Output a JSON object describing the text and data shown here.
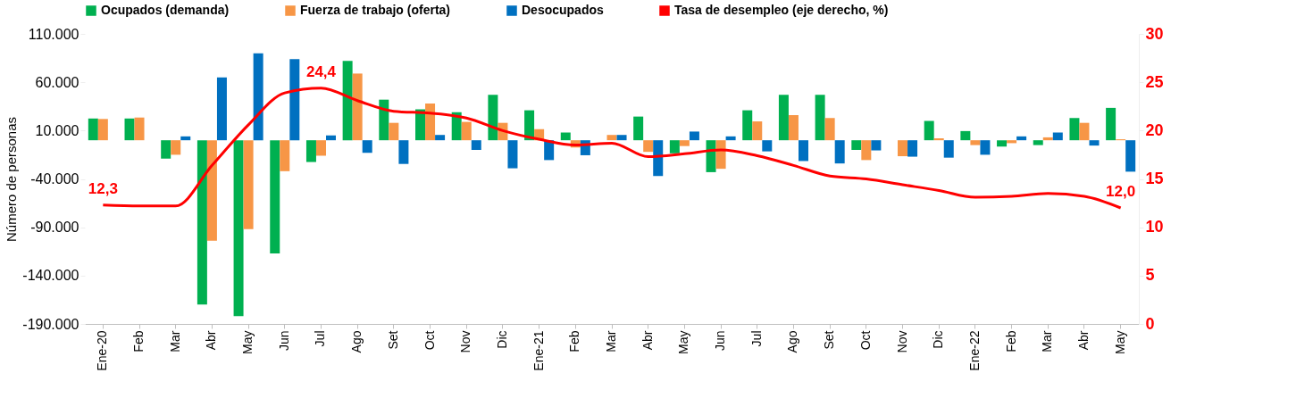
{
  "chart_data": {
    "type": "bar",
    "ylabel": "Número de personas",
    "categories": [
      "Ene-20",
      "Feb",
      "Mar",
      "Abr",
      "May",
      "Jun",
      "Jul",
      "Ago",
      "Set",
      "Oct",
      "Nov",
      "Dic",
      "Ene-21",
      "Feb",
      "Mar",
      "Abr",
      "May",
      "Jun",
      "Jul",
      "Ago",
      "Set",
      "Oct",
      "Nov",
      "Dic",
      "Ene-22",
      "Feb",
      "Mar",
      "Abr",
      "May"
    ],
    "series": [
      {
        "name": "Ocupados (demanda)",
        "color": "#00b050",
        "values": [
          22500,
          22500,
          -19000,
          -170000,
          -182000,
          -117000,
          -22500,
          82000,
          42000,
          32000,
          29000,
          47000,
          31000,
          8000,
          0,
          24500,
          -13500,
          -33000,
          31000,
          47000,
          47000,
          -10000,
          0,
          20000,
          9500,
          -6500,
          -5000,
          23000,
          33500
        ]
      },
      {
        "name": "Fuerza de trabajo (oferta)",
        "color": "#f79646",
        "values": [
          22000,
          23500,
          -15000,
          -104000,
          -92000,
          -32000,
          -16000,
          69000,
          18000,
          38000,
          19000,
          18000,
          11500,
          -7500,
          5500,
          -12000,
          -6000,
          -29500,
          19500,
          26000,
          23000,
          -20500,
          -16500,
          2000,
          -5000,
          -3000,
          3000,
          18000,
          1000
        ]
      },
      {
        "name": "Desocupados",
        "color": "#0070c0",
        "values": [
          0,
          0,
          4000,
          65000,
          90000,
          84000,
          5000,
          -13000,
          -24500,
          5500,
          -10000,
          -29000,
          -20500,
          -15500,
          5500,
          -37000,
          9000,
          4000,
          -11500,
          -21500,
          -24000,
          -10500,
          -17000,
          -18000,
          -15000,
          4000,
          8000,
          -5500,
          -32500
        ]
      },
      {
        "name": "Tasa de desempleo (eje derecho, %)",
        "color": "#ff0000",
        "type": "line",
        "axis": "y2",
        "values": [
          12.3,
          12.2,
          12.2,
          16.4,
          20.6,
          23.9,
          24.4,
          23.1,
          22.0,
          21.8,
          21.3,
          20.0,
          19.1,
          18.5,
          18.7,
          17.3,
          17.6,
          18.0,
          17.4,
          16.4,
          15.3,
          15.0,
          14.4,
          13.8,
          13.1,
          13.2,
          13.5,
          13.2,
          12.0
        ],
        "value_labels": [
          "12,3",
          null,
          null,
          null,
          null,
          null,
          "24,4",
          null,
          null,
          null,
          null,
          null,
          null,
          null,
          null,
          null,
          null,
          null,
          null,
          null,
          null,
          null,
          null,
          null,
          null,
          null,
          null,
          null,
          "12,0"
        ]
      }
    ],
    "ylim": [
      -190000,
      110000
    ],
    "yticks": [
      {
        "value": -190000,
        "label": "-190.000"
      },
      {
        "value": -140000,
        "label": "-140.000"
      },
      {
        "value": -90000,
        "label": "-90.000"
      },
      {
        "value": -40000,
        "label": "-40.000"
      },
      {
        "value": 10000,
        "label": "10.000"
      },
      {
        "value": 60000,
        "label": "60.000"
      },
      {
        "value": 110000,
        "label": "110.000"
      }
    ],
    "y2lim": [
      0,
      30
    ],
    "y2ticks": [
      0,
      5,
      10,
      15,
      20,
      25,
      30
    ],
    "legend": "top",
    "grid": false
  }
}
